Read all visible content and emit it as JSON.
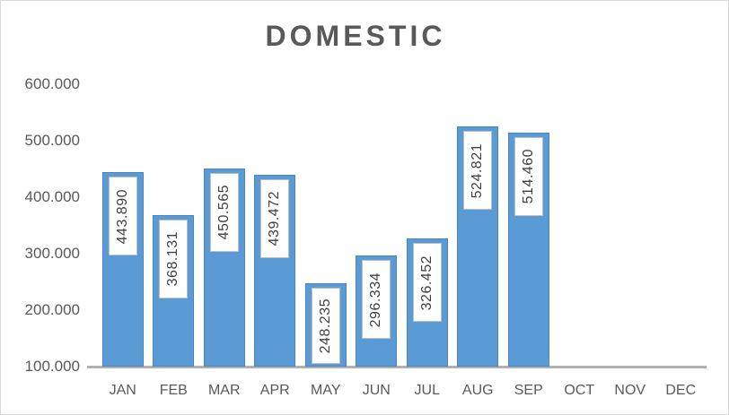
{
  "window": {
    "background": "#FFFFFF",
    "border_color": "#D9D9D9"
  },
  "chart_data": {
    "type": "bar",
    "title": "DOMESTIC",
    "categories": [
      "JAN",
      "FEB",
      "MAR",
      "APR",
      "MAY",
      "JUN",
      "JUL",
      "AUG",
      "SEP",
      "OCT",
      "NOV",
      "DEC"
    ],
    "series": [
      {
        "name": "DOMESTIC",
        "values": [
          443890,
          368131,
          450565,
          439472,
          248235,
          296334,
          326452,
          524821,
          514460,
          null,
          null,
          null
        ],
        "labels": [
          "443.890",
          "368.131",
          "450.565",
          "439.472",
          "248.235",
          "296.334",
          "326.452",
          "524.821",
          "514.460",
          null,
          null,
          null
        ]
      }
    ],
    "xlabel": "",
    "ylabel": "",
    "ylim": [
      100000,
      600000
    ],
    "y_ticks": [
      {
        "value": 600000,
        "label": "600.000"
      },
      {
        "value": 500000,
        "label": "500.000"
      },
      {
        "value": 400000,
        "label": "400.000"
      },
      {
        "value": 300000,
        "label": "300.000"
      },
      {
        "value": 200000,
        "label": "200.000"
      },
      {
        "value": 100000,
        "label": "100.000"
      }
    ],
    "grid": false,
    "legend": "none",
    "colors": {
      "bar_fill": "#5B9BD5",
      "bar_border": "#4A84C0",
      "data_label_box_fill": "#FFFFFF",
      "data_label_box_border": "#BFBFBF",
      "data_label_text": "#404040",
      "title_text": "#595959",
      "axis_text": "#595959",
      "axis_line": "#B0B0B0"
    }
  }
}
